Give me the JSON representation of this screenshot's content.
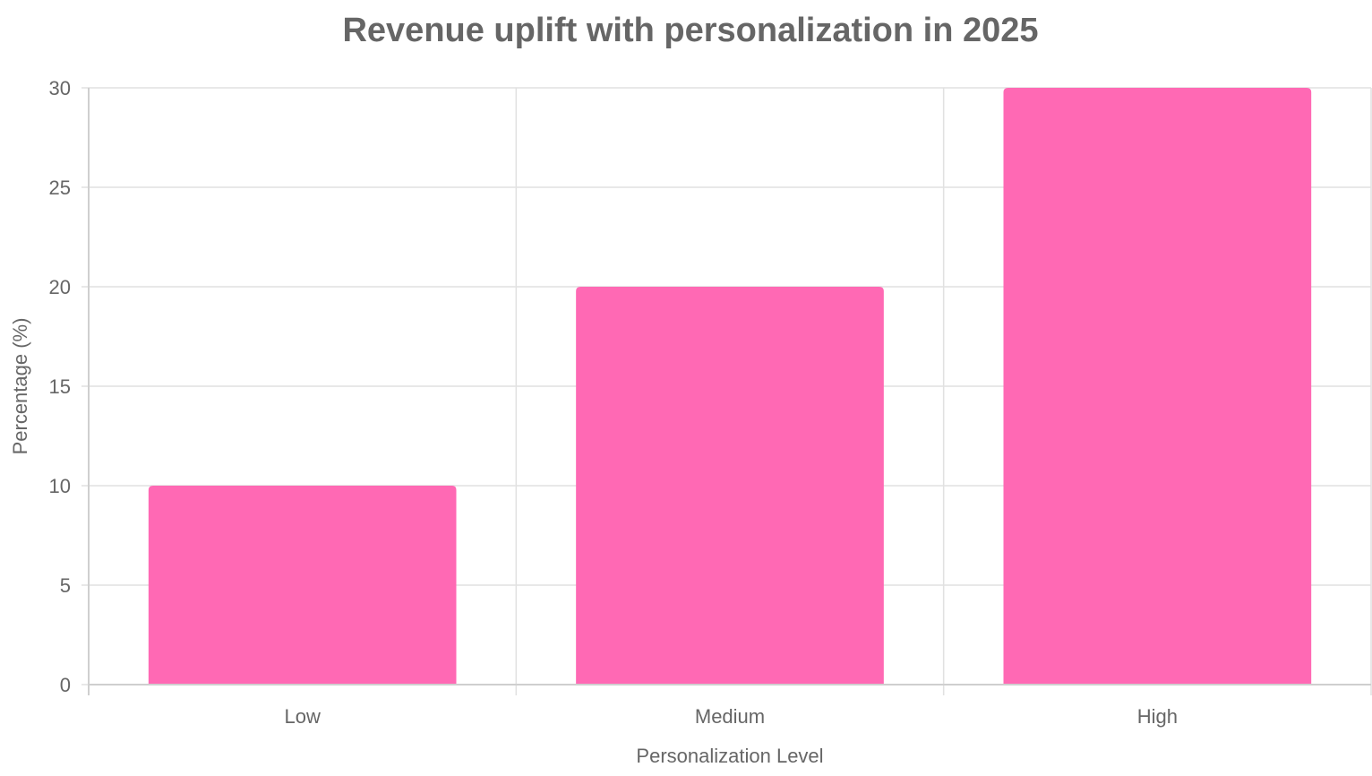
{
  "chart_data": {
    "type": "bar",
    "title": "Revenue uplift with personalization in 2025",
    "xlabel": "Personalization Level",
    "ylabel": "Percentage (%)",
    "categories": [
      "Low",
      "Medium",
      "High"
    ],
    "series": [
      {
        "values": [
          10,
          20,
          30
        ],
        "color": "#ff69b4"
      }
    ],
    "ylim": [
      0,
      30
    ],
    "yticks": [
      "0",
      "5",
      "10",
      "15",
      "20",
      "25",
      "30"
    ],
    "grid": true,
    "legend": "none"
  }
}
